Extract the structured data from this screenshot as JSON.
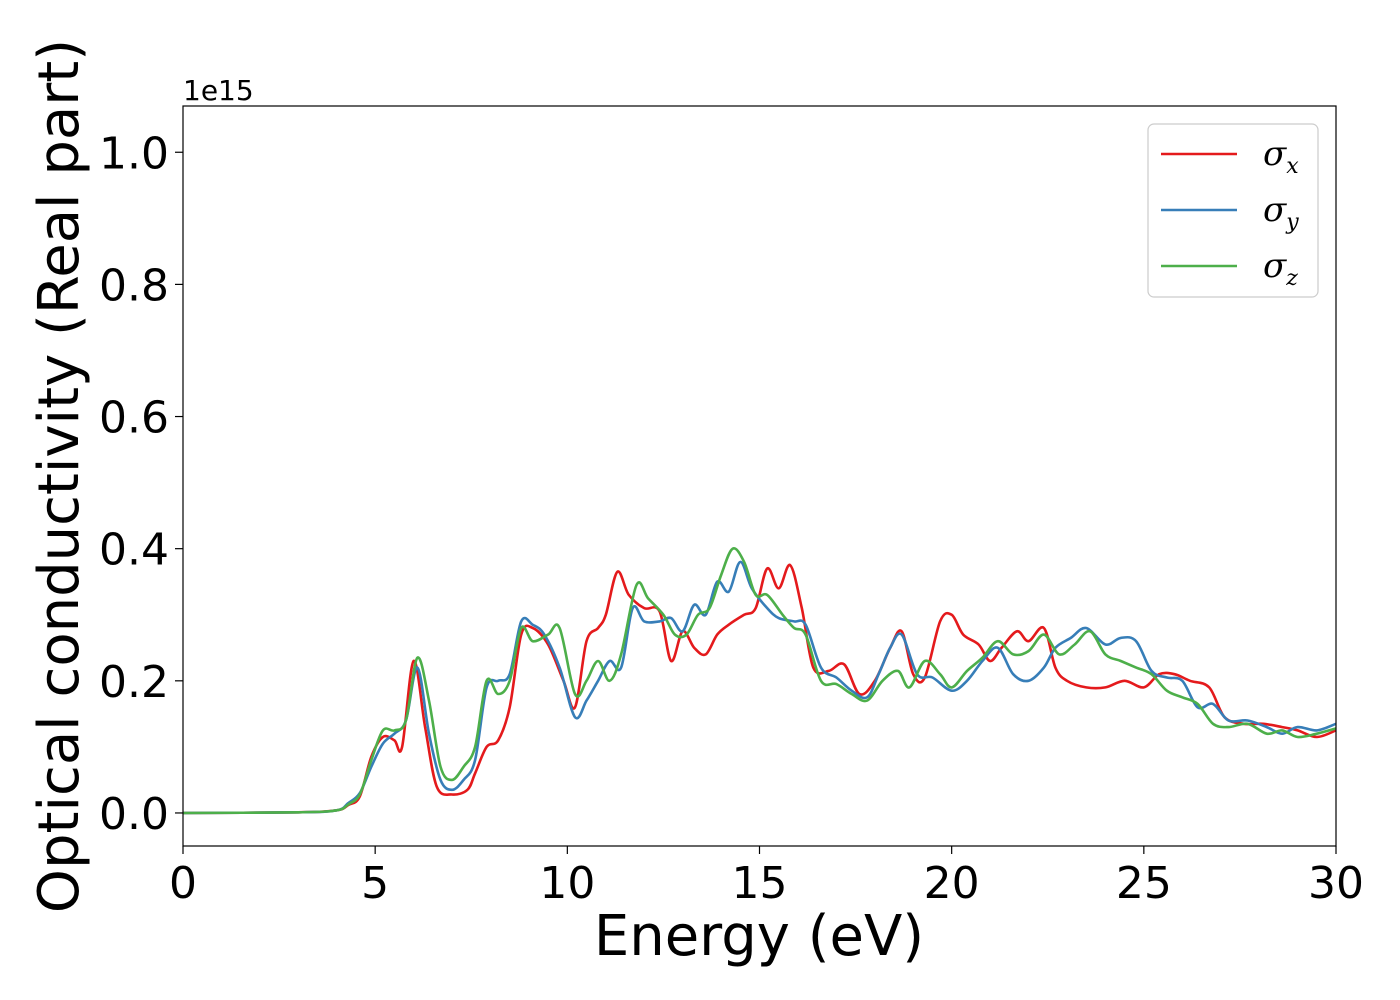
{
  "chart_data": {
    "type": "line",
    "xlabel": "Energy (eV)",
    "ylabel": "Optical conductivity (Real part)",
    "y_offset_label": "1e15",
    "xlim": [
      0,
      30
    ],
    "ylim": [
      -0.05,
      1.07
    ],
    "x_ticks": [
      0,
      5,
      10,
      15,
      20,
      25,
      30
    ],
    "x_tick_labels": [
      "0",
      "5",
      "10",
      "15",
      "20",
      "25",
      "30"
    ],
    "y_ticks": [
      0.0,
      0.2,
      0.4,
      0.6,
      0.8,
      1.0
    ],
    "y_tick_labels": [
      "0.0",
      "0.2",
      "0.4",
      "0.6",
      "0.8",
      "1.0"
    ],
    "grid": false,
    "legend_position": "top-right",
    "series": [
      {
        "name": "σ",
        "subscript": "x",
        "color": "#e41a1c",
        "points": [
          [
            0,
            0
          ],
          [
            3,
            0.001
          ],
          [
            4,
            0.004
          ],
          [
            4.3,
            0.012
          ],
          [
            4.6,
            0.025
          ],
          [
            4.9,
            0.085
          ],
          [
            5.2,
            0.115
          ],
          [
            5.5,
            0.11
          ],
          [
            5.7,
            0.1
          ],
          [
            6.0,
            0.23
          ],
          [
            6.3,
            0.13
          ],
          [
            6.6,
            0.04
          ],
          [
            7.0,
            0.028
          ],
          [
            7.4,
            0.035
          ],
          [
            7.6,
            0.06
          ],
          [
            7.9,
            0.1
          ],
          [
            8.2,
            0.11
          ],
          [
            8.5,
            0.16
          ],
          [
            8.8,
            0.27
          ],
          [
            9.1,
            0.28
          ],
          [
            9.5,
            0.255
          ],
          [
            9.9,
            0.2
          ],
          [
            10.2,
            0.16
          ],
          [
            10.5,
            0.26
          ],
          [
            10.8,
            0.28
          ],
          [
            11.0,
            0.3
          ],
          [
            11.3,
            0.365
          ],
          [
            11.6,
            0.33
          ],
          [
            12.0,
            0.31
          ],
          [
            12.4,
            0.305
          ],
          [
            12.7,
            0.23
          ],
          [
            13.0,
            0.275
          ],
          [
            13.3,
            0.25
          ],
          [
            13.6,
            0.24
          ],
          [
            13.9,
            0.27
          ],
          [
            14.2,
            0.285
          ],
          [
            14.6,
            0.3
          ],
          [
            14.9,
            0.31
          ],
          [
            15.2,
            0.37
          ],
          [
            15.5,
            0.34
          ],
          [
            15.8,
            0.375
          ],
          [
            16.1,
            0.31
          ],
          [
            16.4,
            0.22
          ],
          [
            16.8,
            0.215
          ],
          [
            17.2,
            0.225
          ],
          [
            17.6,
            0.18
          ],
          [
            18.0,
            0.2
          ],
          [
            18.4,
            0.25
          ],
          [
            18.7,
            0.275
          ],
          [
            19.0,
            0.21
          ],
          [
            19.3,
            0.205
          ],
          [
            19.7,
            0.29
          ],
          [
            20.0,
            0.3
          ],
          [
            20.3,
            0.27
          ],
          [
            20.7,
            0.255
          ],
          [
            21.0,
            0.23
          ],
          [
            21.3,
            0.25
          ],
          [
            21.7,
            0.275
          ],
          [
            22.0,
            0.26
          ],
          [
            22.4,
            0.28
          ],
          [
            22.7,
            0.22
          ],
          [
            23.0,
            0.2
          ],
          [
            23.5,
            0.19
          ],
          [
            24.0,
            0.19
          ],
          [
            24.5,
            0.2
          ],
          [
            25.0,
            0.19
          ],
          [
            25.4,
            0.21
          ],
          [
            25.8,
            0.21
          ],
          [
            26.2,
            0.2
          ],
          [
            26.7,
            0.19
          ],
          [
            27.1,
            0.145
          ],
          [
            27.6,
            0.135
          ],
          [
            28.1,
            0.135
          ],
          [
            28.6,
            0.13
          ],
          [
            29.0,
            0.125
          ],
          [
            29.5,
            0.115
          ],
          [
            30,
            0.125
          ]
        ]
      },
      {
        "name": "σ",
        "subscript": "y",
        "color": "#377eb8",
        "points": [
          [
            0,
            0
          ],
          [
            3,
            0.001
          ],
          [
            4,
            0.004
          ],
          [
            4.3,
            0.015
          ],
          [
            4.6,
            0.03
          ],
          [
            4.9,
            0.07
          ],
          [
            5.2,
            0.105
          ],
          [
            5.5,
            0.12
          ],
          [
            5.8,
            0.14
          ],
          [
            6.1,
            0.22
          ],
          [
            6.4,
            0.12
          ],
          [
            6.7,
            0.05
          ],
          [
            7.0,
            0.035
          ],
          [
            7.3,
            0.05
          ],
          [
            7.6,
            0.08
          ],
          [
            7.9,
            0.19
          ],
          [
            8.2,
            0.2
          ],
          [
            8.5,
            0.21
          ],
          [
            8.8,
            0.29
          ],
          [
            9.1,
            0.285
          ],
          [
            9.4,
            0.27
          ],
          [
            9.8,
            0.22
          ],
          [
            10.2,
            0.145
          ],
          [
            10.5,
            0.17
          ],
          [
            10.8,
            0.2
          ],
          [
            11.1,
            0.23
          ],
          [
            11.4,
            0.22
          ],
          [
            11.7,
            0.31
          ],
          [
            12.0,
            0.29
          ],
          [
            12.4,
            0.29
          ],
          [
            12.7,
            0.295
          ],
          [
            13.0,
            0.275
          ],
          [
            13.3,
            0.315
          ],
          [
            13.6,
            0.3
          ],
          [
            13.9,
            0.35
          ],
          [
            14.2,
            0.335
          ],
          [
            14.5,
            0.38
          ],
          [
            14.8,
            0.34
          ],
          [
            15.2,
            0.31
          ],
          [
            15.5,
            0.295
          ],
          [
            15.9,
            0.29
          ],
          [
            16.2,
            0.285
          ],
          [
            16.6,
            0.22
          ],
          [
            17.0,
            0.205
          ],
          [
            17.4,
            0.185
          ],
          [
            17.8,
            0.175
          ],
          [
            18.1,
            0.21
          ],
          [
            18.4,
            0.25
          ],
          [
            18.7,
            0.27
          ],
          [
            19.1,
            0.21
          ],
          [
            19.5,
            0.205
          ],
          [
            20.0,
            0.185
          ],
          [
            20.4,
            0.2
          ],
          [
            20.8,
            0.23
          ],
          [
            21.2,
            0.25
          ],
          [
            21.6,
            0.21
          ],
          [
            22.0,
            0.2
          ],
          [
            22.4,
            0.22
          ],
          [
            22.7,
            0.25
          ],
          [
            23.1,
            0.265
          ],
          [
            23.5,
            0.28
          ],
          [
            24.0,
            0.255
          ],
          [
            24.4,
            0.265
          ],
          [
            24.8,
            0.26
          ],
          [
            25.2,
            0.215
          ],
          [
            25.6,
            0.205
          ],
          [
            26.0,
            0.2
          ],
          [
            26.4,
            0.16
          ],
          [
            26.8,
            0.165
          ],
          [
            27.2,
            0.14
          ],
          [
            27.7,
            0.14
          ],
          [
            28.2,
            0.13
          ],
          [
            28.6,
            0.12
          ],
          [
            29.0,
            0.13
          ],
          [
            29.5,
            0.125
          ],
          [
            30,
            0.135
          ]
        ]
      },
      {
        "name": "σ",
        "subscript": "z",
        "color": "#4daf4a",
        "points": [
          [
            0,
            0
          ],
          [
            3,
            0.001
          ],
          [
            4,
            0.004
          ],
          [
            4.3,
            0.013
          ],
          [
            4.6,
            0.028
          ],
          [
            4.9,
            0.08
          ],
          [
            5.2,
            0.125
          ],
          [
            5.5,
            0.125
          ],
          [
            5.8,
            0.14
          ],
          [
            6.1,
            0.235
          ],
          [
            6.4,
            0.17
          ],
          [
            6.7,
            0.07
          ],
          [
            7.0,
            0.05
          ],
          [
            7.3,
            0.07
          ],
          [
            7.6,
            0.1
          ],
          [
            7.9,
            0.2
          ],
          [
            8.2,
            0.18
          ],
          [
            8.5,
            0.2
          ],
          [
            8.8,
            0.28
          ],
          [
            9.1,
            0.26
          ],
          [
            9.5,
            0.27
          ],
          [
            9.8,
            0.28
          ],
          [
            10.2,
            0.18
          ],
          [
            10.5,
            0.2
          ],
          [
            10.8,
            0.23
          ],
          [
            11.1,
            0.2
          ],
          [
            11.4,
            0.24
          ],
          [
            11.8,
            0.345
          ],
          [
            12.1,
            0.325
          ],
          [
            12.5,
            0.3
          ],
          [
            12.8,
            0.27
          ],
          [
            13.1,
            0.27
          ],
          [
            13.4,
            0.3
          ],
          [
            13.7,
            0.31
          ],
          [
            14.0,
            0.36
          ],
          [
            14.3,
            0.4
          ],
          [
            14.6,
            0.38
          ],
          [
            14.9,
            0.33
          ],
          [
            15.2,
            0.33
          ],
          [
            15.6,
            0.3
          ],
          [
            15.9,
            0.28
          ],
          [
            16.2,
            0.27
          ],
          [
            16.6,
            0.2
          ],
          [
            17.0,
            0.195
          ],
          [
            17.4,
            0.18
          ],
          [
            17.8,
            0.17
          ],
          [
            18.2,
            0.2
          ],
          [
            18.6,
            0.215
          ],
          [
            18.9,
            0.19
          ],
          [
            19.3,
            0.23
          ],
          [
            19.7,
            0.21
          ],
          [
            20.0,
            0.19
          ],
          [
            20.4,
            0.215
          ],
          [
            20.8,
            0.235
          ],
          [
            21.2,
            0.26
          ],
          [
            21.6,
            0.24
          ],
          [
            22.0,
            0.245
          ],
          [
            22.4,
            0.27
          ],
          [
            22.8,
            0.24
          ],
          [
            23.2,
            0.255
          ],
          [
            23.6,
            0.275
          ],
          [
            24.0,
            0.24
          ],
          [
            24.4,
            0.23
          ],
          [
            24.8,
            0.22
          ],
          [
            25.2,
            0.21
          ],
          [
            25.6,
            0.185
          ],
          [
            26.0,
            0.175
          ],
          [
            26.4,
            0.165
          ],
          [
            26.8,
            0.135
          ],
          [
            27.2,
            0.13
          ],
          [
            27.7,
            0.135
          ],
          [
            28.2,
            0.12
          ],
          [
            28.6,
            0.125
          ],
          [
            29.0,
            0.115
          ],
          [
            29.5,
            0.12
          ],
          [
            30,
            0.128
          ]
        ]
      }
    ]
  }
}
